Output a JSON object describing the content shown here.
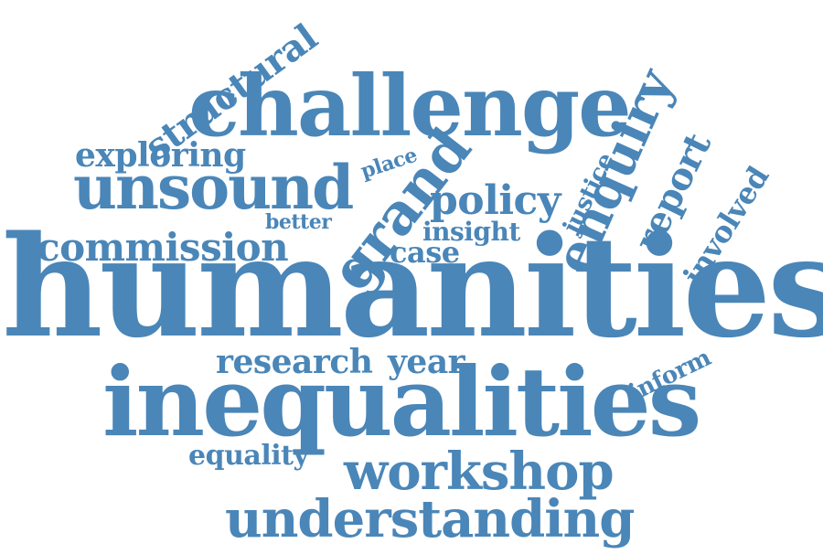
{
  "color": "#4a86b8",
  "words": {
    "humanities": "humanities",
    "inequalities": "inequalities",
    "challenge": "challenge",
    "unsound": "unsound",
    "commission": "commission",
    "understanding": "understanding",
    "workshop": "workshop",
    "research": "research",
    "year": "year",
    "equality": "equality",
    "exploring": "exploring",
    "policy": "policy",
    "insight": "insight",
    "case": "case",
    "better": "better",
    "place": "place",
    "grand": "grand",
    "structural": "structural",
    "justice": "justice",
    "enquiry": "enquiry",
    "report": "report",
    "involved": "involved",
    "inform": "inform"
  }
}
